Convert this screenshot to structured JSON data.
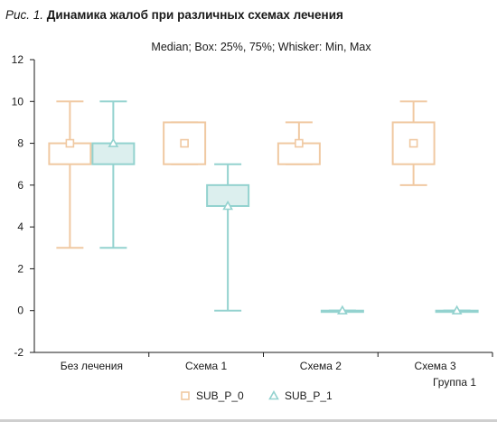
{
  "caption": {
    "number": "Рис. 1.",
    "title": "Динамика жалоб при различных схемах лечения"
  },
  "chart_data": {
    "type": "box",
    "subtitle": "Median; Box: 25%, 75%; Whisker: Min, Max",
    "xlabel": "Группа 1",
    "ylabel": "",
    "ylim": [
      -2,
      12
    ],
    "yticks": [
      -2,
      0,
      2,
      4,
      6,
      8,
      10,
      12
    ],
    "categories": [
      "Без лечения",
      "Схема 1",
      "Схема 2",
      "Схема 3"
    ],
    "legend_position": "bottom",
    "series": [
      {
        "name": "SUB_P_0",
        "color": "#f0c9a2",
        "marker": "square",
        "boxes": [
          {
            "min": 3,
            "q1": 7,
            "median": 8,
            "q3": 8,
            "max": 10
          },
          {
            "min": 7,
            "q1": 7,
            "median": 8,
            "q3": 9,
            "max": 9
          },
          {
            "min": 7,
            "q1": 7,
            "median": 8,
            "q3": 8,
            "max": 9
          },
          {
            "min": 6,
            "q1": 7,
            "median": 8,
            "q3": 9,
            "max": 10
          }
        ]
      },
      {
        "name": "SUB_P_1",
        "color": "#93d2cf",
        "fill": "#dcefee",
        "marker": "triangle",
        "boxes": [
          {
            "min": 3,
            "q1": 7,
            "median": 8,
            "q3": 8,
            "max": 10
          },
          {
            "min": 0,
            "q1": 5,
            "median": 5,
            "q3": 6,
            "max": 7
          },
          {
            "min": 0,
            "q1": 0,
            "median": 0,
            "q3": 0,
            "max": 0
          },
          {
            "min": 0,
            "q1": 0,
            "median": 0,
            "q3": 0,
            "max": 0
          }
        ]
      }
    ]
  }
}
